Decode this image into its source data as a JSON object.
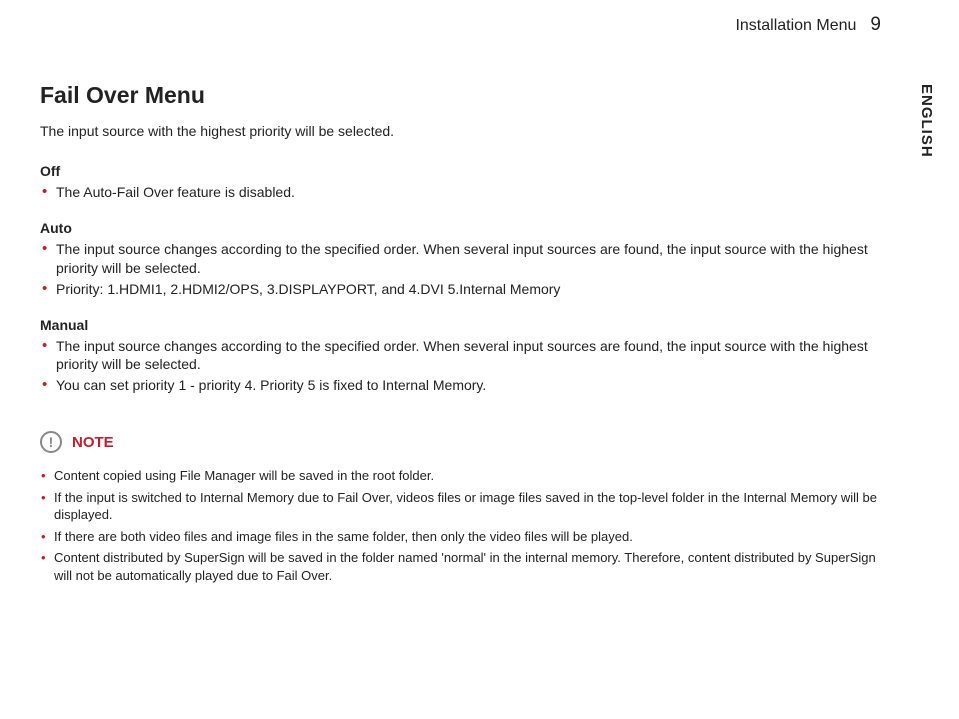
{
  "header": {
    "title": "Installation Menu",
    "page": "9"
  },
  "side_lang": "ENGLISH",
  "page": {
    "h1": "Fail Over Menu",
    "intro": "The input source with the highest priority will be selected.",
    "off": {
      "label": "Off",
      "items": [
        "The Auto-Fail Over feature is disabled."
      ]
    },
    "auto": {
      "label": "Auto",
      "items": [
        "The input source changes according to the specified order. When several input sources are found, the input source with the highest priority will be selected.",
        "Priority: 1.HDMI1, 2.HDMI2/OPS, 3.DISPLAYPORT, and 4.DVI 5.Internal Memory"
      ]
    },
    "manual": {
      "label": "Manual",
      "items": [
        "The input source changes according to the specified order. When several input sources are found, the input source with the highest priority will be selected.",
        "You can set priority 1 - priority 4. Priority 5 is fixed to Internal Memory."
      ]
    },
    "note": {
      "label": "NOTE",
      "items": [
        "Content copied using File Manager will be saved in the root folder.",
        "If the input is switched to Internal Memory due to Fail Over, videos files or image files saved in the top-level folder in the Internal Memory will be displayed.",
        "If there are both video files and image files in the same folder, then only the video files will be played.",
        "Content distributed by SuperSign will be saved in the folder named 'normal' in the internal memory. Therefore, content distributed by SuperSign will not be automatically played due to Fail Over."
      ]
    }
  },
  "colors": {
    "accent": "#be1e2d",
    "text": "#222222",
    "icon": "#888888",
    "bg": "#ffffff"
  }
}
